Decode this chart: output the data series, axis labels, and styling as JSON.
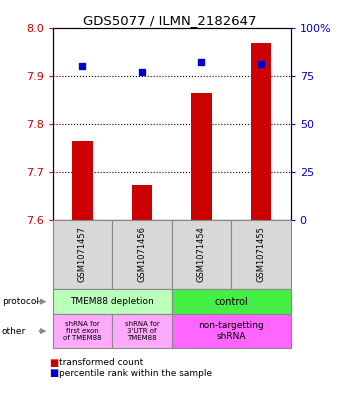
{
  "title": "GDS5077 / ILMN_2182647",
  "samples": [
    "GSM1071457",
    "GSM1071456",
    "GSM1071454",
    "GSM1071455"
  ],
  "bar_values": [
    7.765,
    7.672,
    7.865,
    7.968
  ],
  "dot_values": [
    80,
    77,
    82,
    81
  ],
  "ylim_left": [
    7.6,
    8.0
  ],
  "ylim_right": [
    0,
    100
  ],
  "yticks_left": [
    7.6,
    7.7,
    7.8,
    7.9,
    8.0
  ],
  "yticks_right": [
    0,
    25,
    50,
    75,
    100
  ],
  "ytick_labels_right": [
    "0",
    "25",
    "50",
    "75",
    "100%"
  ],
  "bar_color": "#cc0000",
  "dot_color": "#0000cc",
  "bar_bottom": 7.6,
  "protocol_left_label": "TMEM88 depletion",
  "protocol_right_label": "control",
  "protocol_left_color": "#bbffbb",
  "protocol_right_color": "#44ee44",
  "other_label0": "shRNA for\nfirst exon\nof TMEM88",
  "other_label1": "shRNA for\n3'UTR of\nTMEM88",
  "other_label2": "non-targetting\nshRNA",
  "other_color01": "#ffaaff",
  "other_color2": "#ff66ff",
  "legend_bar": "transformed count",
  "legend_dot": "percentile rank within the sample",
  "bg_color": "#d8d8d8",
  "bar_width": 0.35
}
